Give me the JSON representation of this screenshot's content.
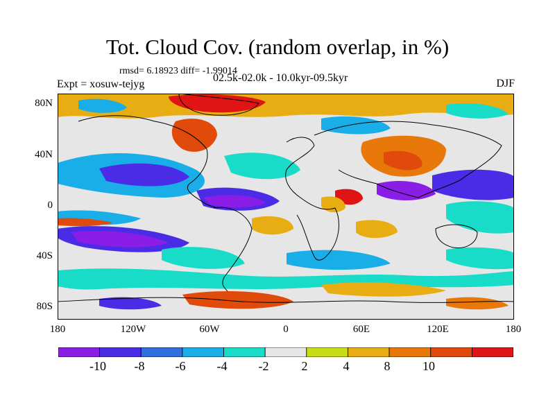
{
  "title": "Tot. Cloud Cov. (random overlap, in %)",
  "stats": "rmsd= 6.18923 diff= -1.99014",
  "experiment": "Expt = xosuw-tejyg",
  "period": "02.5k-02.0k - 10.0kyr-09.5kyr",
  "season": "DJF",
  "lat_labels": [
    "80N",
    "40N",
    "0",
    "40S",
    "80S"
  ],
  "lon_labels": [
    "180",
    "120W",
    "60W",
    "0",
    "60E",
    "120E",
    "180"
  ],
  "colorbar": {
    "labels": [
      "-10",
      "-8",
      "-6",
      "-4",
      "-2",
      "2",
      "4",
      "8",
      "10"
    ],
    "colors": [
      "#8a1ee6",
      "#4b2ce6",
      "#2f6fe0",
      "#1aaee8",
      "#19dcc8",
      "#e6e6e6",
      "#c8dc14",
      "#e8ad12",
      "#e8780a",
      "#e04a0a",
      "#e01414"
    ]
  }
}
